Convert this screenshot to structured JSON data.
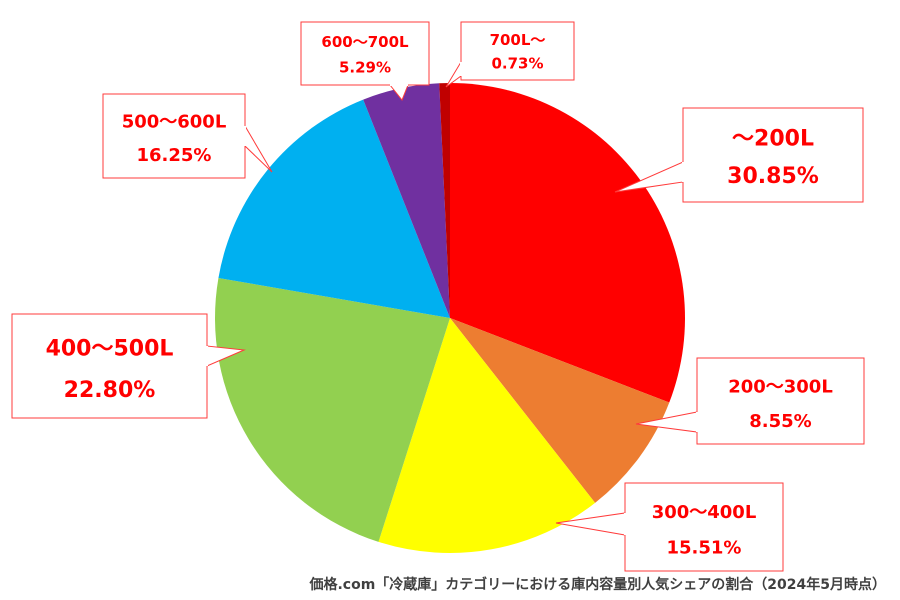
{
  "chart_data": {
    "type": "pie",
    "title": "",
    "categories": [
      "～200L",
      "200～300L",
      "300～400L",
      "400～500L",
      "500～600L",
      "600～700L",
      "700L～"
    ],
    "values": [
      30.85,
      8.55,
      15.51,
      22.8,
      16.25,
      5.29,
      0.73
    ],
    "value_labels": [
      "30.85%",
      "8.55%",
      "15.51%",
      "22.80%",
      "16.25%",
      "5.29%",
      "0.73%"
    ],
    "colors": [
      "#ff0000",
      "#ed7d31",
      "#ffff00",
      "#92d050",
      "#00b0f0",
      "#7030a0",
      "#c00000"
    ],
    "start_angle_deg": 0,
    "direction": "clockwise",
    "legend": "none",
    "label_style": "callout",
    "label_color": "#ff0000"
  },
  "footer": {
    "source_note": "価格.com「冷蔵庫」カテゴリーにおける庫内容量別人気シェアの割合（2024年5月時点）"
  }
}
